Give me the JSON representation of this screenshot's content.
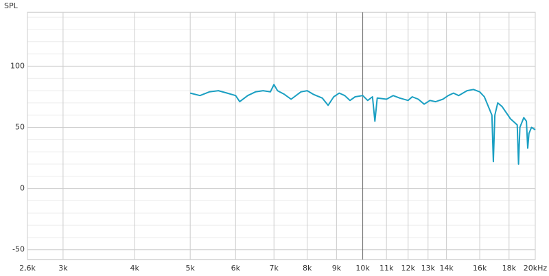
{
  "chart_data": {
    "type": "line",
    "y_label": "SPL",
    "log_x": true,
    "xlim": [
      2600,
      20000
    ],
    "xticks": [
      {
        "value": 2600,
        "label": "2,6k"
      },
      {
        "value": 3000,
        "label": "3k"
      },
      {
        "value": 4000,
        "label": "4k"
      },
      {
        "value": 5000,
        "label": "5k"
      },
      {
        "value": 6000,
        "label": "6k"
      },
      {
        "value": 7000,
        "label": "7k"
      },
      {
        "value": 8000,
        "label": "8k"
      },
      {
        "value": 9000,
        "label": "9k"
      },
      {
        "value": 10000,
        "label": "10k"
      },
      {
        "value": 11000,
        "label": "11k"
      },
      {
        "value": 12000,
        "label": "12k"
      },
      {
        "value": 13000,
        "label": "13k"
      },
      {
        "value": 14000,
        "label": "14k"
      },
      {
        "value": 16000,
        "label": "16k"
      },
      {
        "value": 18000,
        "label": "18k"
      },
      {
        "value": 20000,
        "label": "20kHz"
      }
    ],
    "ylim": [
      -58,
      144
    ],
    "yticks": [
      -50,
      0,
      50,
      100
    ],
    "y_minor_ticks": [
      -40,
      -30,
      -20,
      -10,
      10,
      20,
      30,
      40,
      60,
      70,
      80,
      90,
      110,
      120,
      130,
      140
    ],
    "grid": true,
    "x": [
      5000,
      5200,
      5400,
      5600,
      5800,
      6000,
      6100,
      6300,
      6500,
      6700,
      6900,
      7000,
      7100,
      7300,
      7500,
      7800,
      8000,
      8200,
      8500,
      8700,
      8900,
      9100,
      9300,
      9500,
      9700,
      10000,
      10200,
      10400,
      10500,
      10600,
      11000,
      11300,
      11600,
      12000,
      12200,
      12500,
      12800,
      13100,
      13400,
      13800,
      14100,
      14400,
      14700,
      15200,
      15600,
      16000,
      16300,
      16600,
      16800,
      16900,
      17000,
      17200,
      17500,
      17800,
      18100,
      18400,
      18600,
      18700,
      18800,
      19100,
      19300,
      19400,
      19500,
      19700,
      20000
    ],
    "series": [
      {
        "color": "#1a9fc2",
        "values": [
          78,
          76,
          79,
          80,
          78,
          76,
          71,
          76,
          79,
          80,
          79,
          85,
          80,
          77,
          73,
          79,
          80,
          77,
          74,
          68,
          75,
          78,
          76,
          72,
          75,
          76,
          72,
          75,
          55,
          74,
          73,
          76,
          74,
          72,
          75,
          73,
          69,
          72,
          71,
          73,
          76,
          78,
          76,
          80,
          81,
          79,
          75,
          66,
          60,
          22,
          60,
          70,
          67,
          62,
          57,
          54,
          52,
          20,
          50,
          58,
          55,
          33,
          45,
          50,
          48
        ]
      }
    ]
  }
}
